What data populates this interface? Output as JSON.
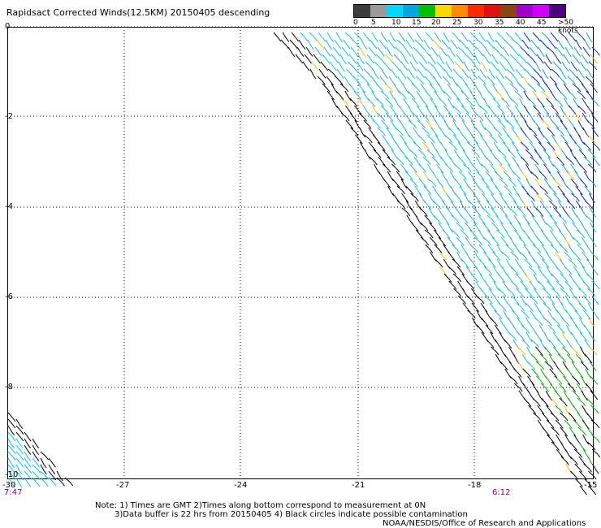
{
  "title": "Rapidsact Corrected Winds(12.5KM) 20150405 descending",
  "legend": {
    "labels": [
      "0",
      "5",
      "10",
      "15",
      "20",
      "25",
      "30",
      "35",
      "40",
      "45",
      ">50 knots"
    ],
    "colors": [
      "#3c3c3c",
      "#9a9a9a",
      "#00d8ff",
      "#00a8e0",
      "#00c000",
      "#ffd800",
      "#ff8c00",
      "#ff2a00",
      "#e01010",
      "#8b4513",
      "#a000c8",
      "#d000ff",
      "#4b0080"
    ]
  },
  "axes": {
    "y_labels": [
      "0",
      "-2",
      "-4",
      "-6",
      "-8",
      "-10"
    ],
    "x_labels": [
      "-30",
      "-27",
      "-24",
      "-21",
      "-18",
      "-15"
    ]
  },
  "times": {
    "left": "7:47",
    "right": "6:12"
  },
  "notes": {
    "line1": "Note: 1) Times are GMT 2)Times along bottom correspond to measurement at 0N",
    "line2": "3)Data buffer is 22 hrs from 20150405 4) Black circles indicate possible contamination",
    "credit": "NOAA/NESDIS/Office of Research and Applications"
  }
}
